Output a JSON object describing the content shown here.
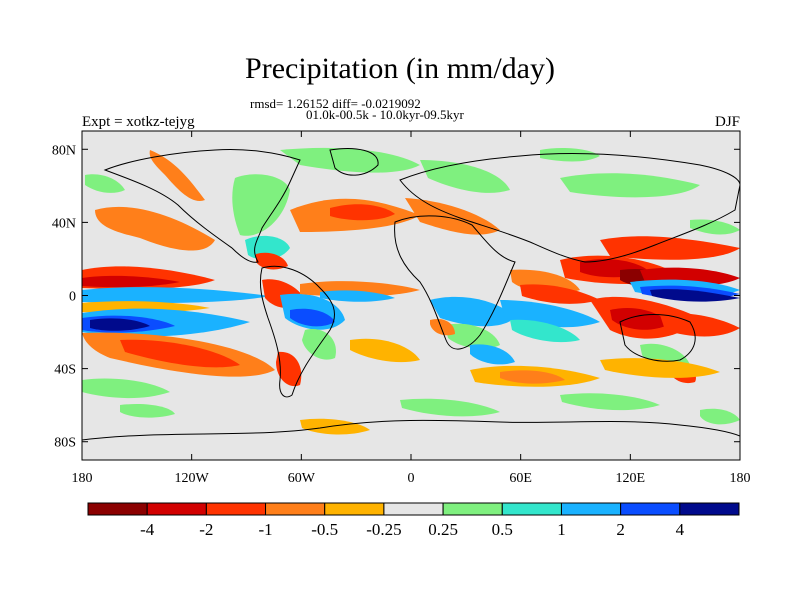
{
  "title": "Precipitation (in mm/day)",
  "subtitle_line1": "rmsd= 1.26152 diff= -0.0219092",
  "subtitle_line2": "01.0k-00.5k - 10.0kyr-09.5kyr",
  "left_label": "Expt = xotkz-tejyg",
  "right_label": "DJF",
  "map": {
    "projection": "cylindrical equidistant",
    "lon_range": [
      -180,
      180
    ],
    "lat_range": [
      -90,
      90
    ],
    "background_color": "#e6e6e6",
    "x_ticks": [
      {
        "value": -180,
        "label": "180"
      },
      {
        "value": -120,
        "label": "120W"
      },
      {
        "value": -60,
        "label": "60W"
      },
      {
        "value": 0,
        "label": "0"
      },
      {
        "value": 60,
        "label": "60E"
      },
      {
        "value": 120,
        "label": "120E"
      },
      {
        "value": 180,
        "label": "180"
      }
    ],
    "y_ticks": [
      {
        "value": 80,
        "label": "80N"
      },
      {
        "value": 40,
        "label": "40N"
      },
      {
        "value": 0,
        "label": "0"
      },
      {
        "value": -40,
        "label": "40S"
      },
      {
        "value": -80,
        "label": "80S"
      }
    ]
  },
  "colorbar": {
    "labels": [
      "-4",
      "-2",
      "-1",
      "-0.5",
      "-0.25",
      "0.25",
      "0.5",
      "1",
      "2",
      "4"
    ],
    "colors": [
      "#8b0000",
      "#d20000",
      "#ff3300",
      "#ff7f1a",
      "#ffb300",
      "#e6e6e6",
      "#7ff07f",
      "#33e6cc",
      "#1ab2ff",
      "#0a4dff",
      "#000a8c"
    ]
  }
}
